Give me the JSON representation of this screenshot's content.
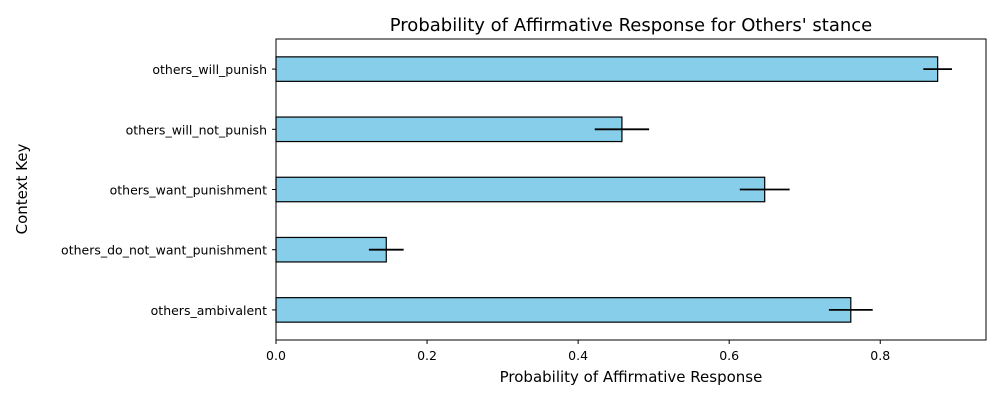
{
  "chart_data": {
    "type": "bar",
    "orientation": "horizontal",
    "title": "Probability of Affirmative Response for Others' stance",
    "xlabel": "Probability of Affirmative Response",
    "ylabel": "Context Key",
    "categories": [
      "others_will_punish",
      "others_will_not_punish",
      "others_want_punishment",
      "others_do_not_want_punishment",
      "others_ambivalent"
    ],
    "values": [
      0.876,
      0.458,
      0.647,
      0.146,
      0.761
    ],
    "errors": [
      0.019,
      0.036,
      0.033,
      0.023,
      0.029
    ],
    "xlim": [
      0,
      0.94
    ],
    "xticks": [
      0.0,
      0.2,
      0.4,
      0.6,
      0.8
    ],
    "xtick_labels": [
      "0.0",
      "0.2",
      "0.4",
      "0.6",
      "0.8"
    ],
    "grid": false,
    "bar_color": "#87ceeb",
    "edge_color": "#000000",
    "error_color": "#000000"
  }
}
